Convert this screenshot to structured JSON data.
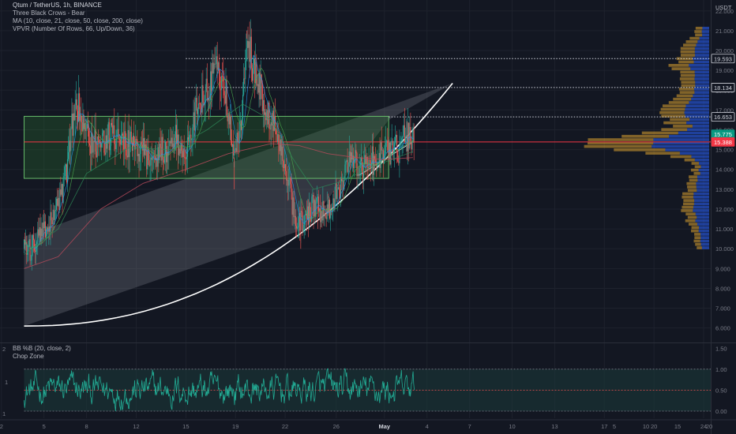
{
  "legend": {
    "symbol": "Qtum / TetherUS, 1h, BINANCE",
    "pattern": "Three Black Crows - Bear",
    "ma": "MA (10, close, 21, close, 50, close, 200, close)",
    "vpvr": "VPVR (Number Of Rows, 66, Up/Down, 36)"
  },
  "lower_legend": {
    "bb": "BB %B (20, close, 2)",
    "chop": "Chop Zone"
  },
  "currency": "USDT",
  "left_axis_labels": {
    "top": "2",
    "mid": "1",
    "bottom": "1"
  },
  "colors": {
    "background": "#131722",
    "candle_up": "#26a69a",
    "candle_down": "#ef5350",
    "vol_up": "#2962ff",
    "vol_down": "#f0b030",
    "poc_line": "#f23645",
    "box_fill": "#2e7d32",
    "box_border": "#66bb6a",
    "wedge_fill": "#787b86",
    "curve": "#ffffff",
    "bb_line": "#22ab94",
    "grid": "#1e222d"
  },
  "chart_data": [
    {
      "type": "candlestick",
      "title": "Qtum / TetherUS, 1h, BINANCE",
      "y_unit": "USDT",
      "ylim": [
        5.35,
        22.55
      ],
      "y_ticks": [
        "6.000",
        "7.000",
        "8.000",
        "9.000",
        "10.000",
        "11.000",
        "12.000",
        "13.000",
        "14.000",
        "15.000",
        "16.000",
        "17.000",
        "18.000",
        "19.000",
        "20.000",
        "21.000",
        "22.000"
      ],
      "y_tick_values": [
        6,
        7,
        8,
        9,
        10,
        11,
        12,
        13,
        14,
        15,
        16,
        17,
        18,
        19,
        20,
        21,
        22
      ],
      "x_ticks": [
        "2",
        "5",
        "8",
        "12",
        "15",
        "19",
        "22",
        "26",
        "May",
        "4",
        "7",
        "10",
        "13",
        "17",
        "20",
        "24"
      ],
      "x_tick_days": [
        2,
        5,
        8,
        11.5,
        15,
        18.5,
        22,
        25.6,
        29,
        32,
        35,
        38,
        41,
        44.5,
        48,
        51.5
      ],
      "x_range_days": [
        1.9,
        52.0
      ],
      "data_end_day": 31.1,
      "price_bubbles": [
        {
          "label": "19.593",
          "value": 19.593,
          "style": "white"
        },
        {
          "label": "18.134",
          "value": 18.134,
          "style": "white"
        },
        {
          "label": "16.653",
          "value": 16.653,
          "style": "white"
        },
        {
          "label": "15.775",
          "value": 15.775,
          "style": "teal"
        },
        {
          "label": "15.388",
          "value": 15.388,
          "style": "red"
        }
      ],
      "price_path": [
        [
          3.6,
          10.0
        ],
        [
          4.0,
          9.9
        ],
        [
          4.6,
          10.6
        ],
        [
          5.3,
          11.0
        ],
        [
          5.9,
          11.9
        ],
        [
          6.5,
          13.5
        ],
        [
          7.0,
          16.3
        ],
        [
          7.4,
          17.2
        ],
        [
          7.9,
          15.8
        ],
        [
          8.6,
          15.3
        ],
        [
          9.5,
          15.6
        ],
        [
          10.6,
          15.4
        ],
        [
          11.6,
          15.0
        ],
        [
          12.5,
          14.6
        ],
        [
          13.5,
          15.0
        ],
        [
          14.2,
          15.6
        ],
        [
          14.9,
          15.1
        ],
        [
          15.4,
          16.1
        ],
        [
          16.0,
          17.6
        ],
        [
          16.6,
          18.2
        ],
        [
          17.3,
          19.2
        ],
        [
          17.9,
          17.5
        ],
        [
          18.4,
          14.6
        ],
        [
          18.9,
          16.6
        ],
        [
          19.3,
          20.6
        ],
        [
          19.7,
          19.3
        ],
        [
          20.3,
          18.0
        ],
        [
          21.0,
          16.3
        ],
        [
          21.7,
          15.4
        ],
        [
          22.2,
          13.4
        ],
        [
          22.7,
          11.7
        ],
        [
          23.4,
          11.3
        ],
        [
          24.1,
          12.3
        ],
        [
          24.8,
          11.7
        ],
        [
          25.5,
          12.6
        ],
        [
          26.1,
          13.6
        ],
        [
          26.7,
          14.4
        ],
        [
          27.4,
          14.1
        ],
        [
          28.1,
          14.4
        ],
        [
          28.7,
          14.7
        ],
        [
          29.4,
          14.9
        ],
        [
          29.9,
          15.0
        ],
        [
          30.5,
          15.6
        ],
        [
          31.0,
          15.8
        ]
      ],
      "ma200_path": [
        [
          3.6,
          9.0
        ],
        [
          6.0,
          9.6
        ],
        [
          9.0,
          12.0
        ],
        [
          12.0,
          13.3
        ],
        [
          15.0,
          14.0
        ],
        [
          18.0,
          14.8
        ],
        [
          21.0,
          15.3
        ],
        [
          23.0,
          15.2
        ],
        [
          25.0,
          14.8
        ],
        [
          27.0,
          14.6
        ],
        [
          29.0,
          14.5
        ],
        [
          31.0,
          14.6
        ]
      ],
      "ma50_path": [
        [
          3.6,
          9.7
        ],
        [
          6.0,
          11.0
        ],
        [
          8.0,
          13.8
        ],
        [
          11.0,
          15.1
        ],
        [
          14.0,
          15.0
        ],
        [
          16.5,
          16.0
        ],
        [
          19.0,
          17.3
        ],
        [
          21.0,
          16.5
        ],
        [
          22.5,
          14.6
        ],
        [
          24.0,
          13.0
        ],
        [
          26.0,
          13.4
        ],
        [
          28.0,
          14.1
        ],
        [
          31.0,
          14.9
        ]
      ],
      "horizontal_levels": [
        19.593,
        18.134,
        16.653
      ],
      "poc_level": 15.388,
      "range_box": {
        "day_start": 3.6,
        "day_end": 29.3,
        "top": 16.68,
        "bottom": 13.55
      },
      "wedge": {
        "points": [
          [
            3.6,
            10.6
          ],
          [
            33.8,
            18.35
          ],
          [
            29.3,
            16.5
          ],
          [
            23.4,
            11.0
          ],
          [
            3.6,
            6.1
          ]
        ]
      },
      "curve": {
        "type": "parabolic",
        "day_start": 3.6,
        "day_end": 33.8,
        "y_start": 6.1,
        "y_end": 18.35
      },
      "volume_profile": {
        "price_low": 9.95,
        "price_high": 21.2,
        "rows": 66,
        "max_length": 20,
        "x_scale_ticks": [
          "5",
          "10",
          "15",
          "20"
        ],
        "poc_price": 15.388
      }
    },
    {
      "type": "line",
      "title": "BB %B (20, close, 2)",
      "ylim": [
        -0.17,
        1.58
      ],
      "y_ticks": [
        "0.00",
        "0.50",
        "1.00",
        "1.50"
      ],
      "y_tick_values": [
        0,
        0.5,
        1.0,
        1.5
      ],
      "reference_lines": [
        1.0,
        0.5,
        0.0
      ],
      "band": [
        0.0,
        1.0
      ],
      "series": [
        {
          "name": "BB %B",
          "seed": 12345,
          "samples": 700
        }
      ]
    }
  ]
}
